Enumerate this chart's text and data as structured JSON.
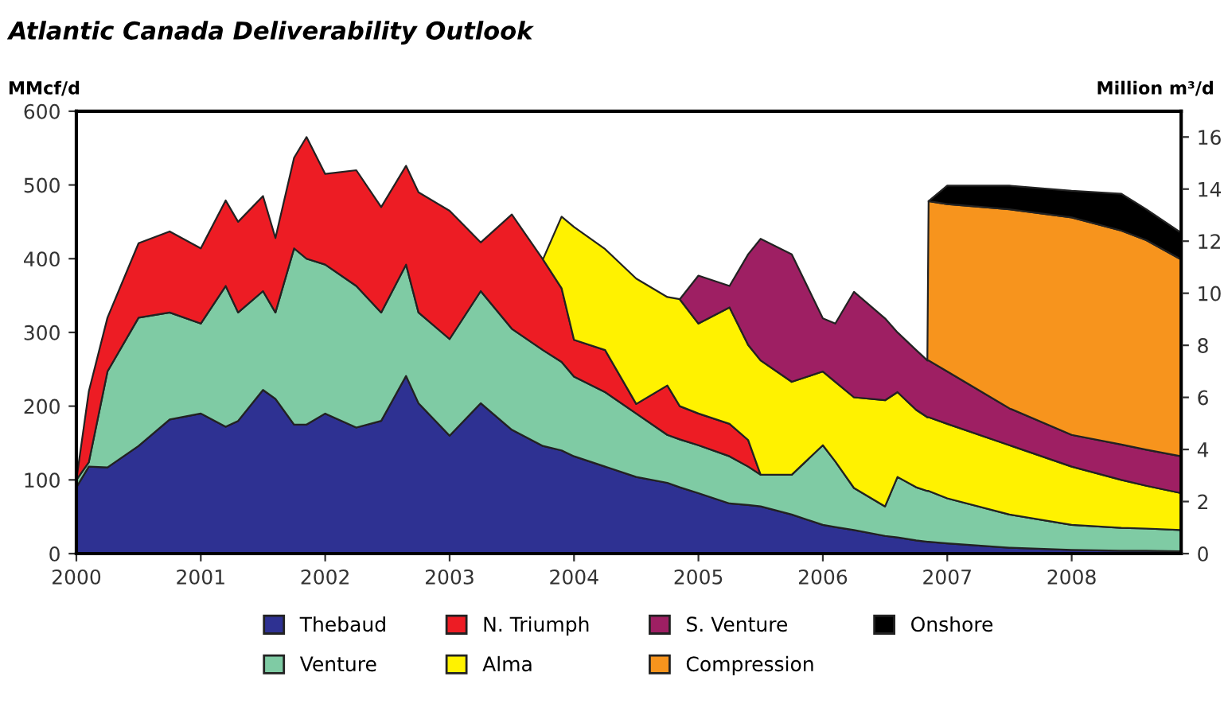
{
  "chart_data": {
    "type": "area",
    "stacked": true,
    "title": "Atlantic Canada Deliverability Outlook",
    "ylabel": "MMcf/d",
    "y2label": "Million m³/d",
    "x": [
      2000.0,
      2000.1,
      2000.25,
      2000.5,
      2000.75,
      2001.0,
      2001.2,
      2001.3,
      2001.5,
      2001.6,
      2001.75,
      2001.85,
      2002.0,
      2002.25,
      2002.45,
      2002.65,
      2002.75,
      2003.0,
      2003.25,
      2003.5,
      2003.75,
      2003.9,
      2004.0,
      2004.25,
      2004.5,
      2004.75,
      2004.85,
      2005.0,
      2005.25,
      2005.4,
      2005.5,
      2005.75,
      2006.0,
      2006.1,
      2006.25,
      2006.5,
      2006.6,
      2006.75,
      2006.84,
      2006.85,
      2007.0,
      2007.5,
      2008.0,
      2008.4,
      2008.6,
      2008.88
    ],
    "series": [
      {
        "name": "Thebaud",
        "color": "#2e3192",
        "values": [
          90,
          118,
          117,
          146,
          182,
          190,
          172,
          180,
          222,
          210,
          175,
          175,
          190,
          171,
          180,
          241,
          204,
          160,
          204,
          168,
          146,
          140,
          132,
          118,
          104,
          96,
          90,
          82,
          68,
          66,
          64,
          53,
          39,
          36,
          32,
          24,
          22,
          18,
          16,
          16,
          14,
          8,
          5,
          4,
          4,
          3
        ]
      },
      {
        "name": "Venture",
        "color": "#7fcba4",
        "values": [
          10,
          6,
          130,
          174,
          145,
          122,
          191,
          147,
          134,
          117,
          239,
          225,
          202,
          192,
          147,
          151,
          123,
          131,
          152,
          137,
          130,
          120,
          108,
          101,
          86,
          65,
          65,
          65,
          64,
          52,
          43,
          54,
          108,
          89,
          57,
          40,
          82,
          72,
          69,
          69,
          61,
          45,
          34,
          31,
          30,
          29
        ]
      },
      {
        "name": "N. Triumph",
        "color": "#ed1c24",
        "values": [
          0,
          96,
          73,
          101,
          110,
          102,
          116,
          123,
          129,
          101,
          123,
          165,
          123,
          157,
          143,
          134,
          163,
          174,
          66,
          155,
          123,
          100,
          50,
          57,
          13,
          67,
          45,
          43,
          44,
          36,
          0,
          null,
          null,
          null,
          null,
          null,
          null,
          null,
          null,
          null,
          null,
          null,
          null,
          null,
          null,
          null
        ]
      },
      {
        "name": "Alma",
        "color": "#fff200",
        "values": [
          null,
          null,
          null,
          null,
          null,
          null,
          null,
          null,
          null,
          null,
          null,
          null,
          null,
          null,
          null,
          null,
          null,
          null,
          null,
          null,
          0,
          97,
          153,
          137,
          170,
          120,
          145,
          122,
          158,
          129,
          155,
          126,
          100,
          108,
          123,
          144,
          115,
          105,
          100,
          100,
          101,
          94,
          79,
          65,
          58,
          50
        ]
      },
      {
        "name": "S. Venture",
        "color": "#9e1f63",
        "values": [
          null,
          null,
          null,
          null,
          null,
          null,
          null,
          null,
          null,
          null,
          null,
          null,
          null,
          null,
          null,
          null,
          null,
          null,
          null,
          null,
          null,
          null,
          null,
          null,
          null,
          null,
          0,
          65,
          29,
          123,
          165,
          173,
          72,
          79,
          143,
          111,
          81,
          81,
          77,
          77,
          71,
          50,
          43,
          48,
          49,
          50
        ]
      },
      {
        "name": "Compression",
        "color": "#f7941d",
        "values": [
          null,
          null,
          null,
          null,
          null,
          null,
          null,
          null,
          null,
          null,
          null,
          null,
          null,
          null,
          null,
          null,
          null,
          null,
          null,
          null,
          null,
          null,
          null,
          null,
          null,
          null,
          null,
          null,
          null,
          null,
          null,
          null,
          null,
          null,
          null,
          null,
          null,
          null,
          0,
          216,
          227,
          270,
          295,
          290,
          284,
          267
        ]
      },
      {
        "name": "Onshore",
        "color": "#000000",
        "values": [
          null,
          null,
          null,
          null,
          null,
          null,
          null,
          null,
          null,
          null,
          null,
          null,
          null,
          null,
          null,
          null,
          null,
          null,
          null,
          null,
          null,
          null,
          null,
          null,
          null,
          null,
          null,
          null,
          null,
          null,
          null,
          null,
          null,
          null,
          null,
          null,
          null,
          null,
          null,
          0,
          25,
          32,
          36,
          50,
          42,
          36
        ]
      }
    ],
    "xlim": [
      2000,
      2008.88
    ],
    "xticks": [
      2000,
      2001,
      2002,
      2003,
      2004,
      2005,
      2006,
      2007,
      2008
    ],
    "ylim": [
      0,
      600
    ],
    "yticks": [
      0,
      100,
      200,
      300,
      400,
      500,
      600
    ],
    "y2lim": [
      0,
      16.99
    ],
    "y2ticks": [
      0,
      2,
      4,
      6,
      8,
      10,
      12,
      14,
      16
    ],
    "legend": "bottom",
    "grid": false
  }
}
